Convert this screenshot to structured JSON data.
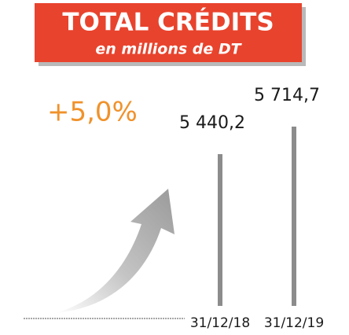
{
  "chart_data": {
    "type": "bar",
    "title": "TOTAL CRÉDITS",
    "subtitle": "en millions de DT",
    "annotation": "+5,0%",
    "categories": [
      "31/12/18",
      "31/12/19"
    ],
    "values": [
      5440.2,
      5714.7
    ],
    "value_labels": [
      "5 440,2",
      "5 714,7"
    ],
    "color": "#8c8c8c"
  }
}
